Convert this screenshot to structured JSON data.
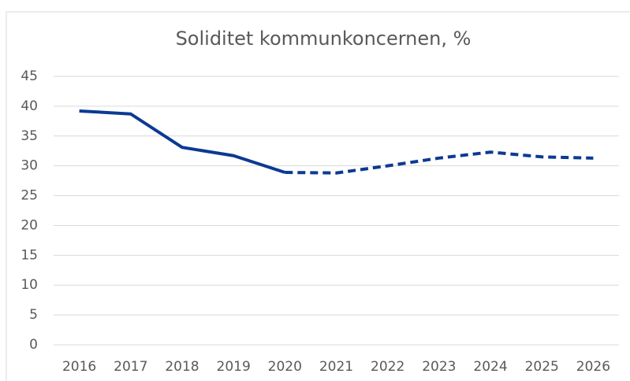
{
  "chart_data": {
    "type": "line",
    "title": "Soliditet kommunkoncernen, %",
    "categories": [
      "2016",
      "2017",
      "2018",
      "2019",
      "2020",
      "2021",
      "2022",
      "2023",
      "2024",
      "2025",
      "2026"
    ],
    "series": [
      {
        "color": "#0b3a93",
        "style": "solid",
        "values": [
          39.2,
          38.7,
          33.1,
          31.7,
          28.9,
          null,
          null,
          null,
          null,
          null,
          null
        ]
      },
      {
        "color": "#0b3a93",
        "style": "dashed",
        "values": [
          null,
          null,
          null,
          null,
          28.9,
          28.8,
          30.0,
          31.3,
          32.3,
          31.5,
          31.3
        ]
      }
    ],
    "ylim": [
      0,
      45
    ],
    "yticks": [
      0,
      5,
      10,
      15,
      20,
      25,
      30,
      35,
      40,
      45
    ],
    "grid": true
  }
}
